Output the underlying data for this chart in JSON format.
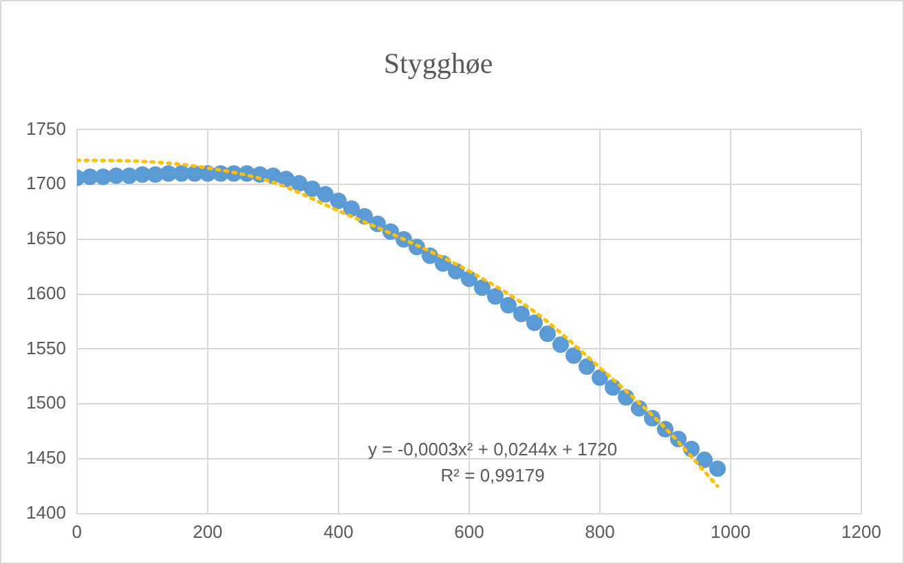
{
  "chart_data": {
    "type": "scatter",
    "title": "Stygghøe",
    "xlim": [
      0,
      1200
    ],
    "xticks": [
      0,
      200,
      400,
      600,
      800,
      1000,
      1200
    ],
    "ylim": [
      1400,
      1750
    ],
    "yticks": [
      1400,
      1450,
      1500,
      1550,
      1600,
      1650,
      1700,
      1750
    ],
    "grid": true,
    "legend": false,
    "marker": "circle",
    "series": [
      {
        "color": "#5b9bd5",
        "x": [
          0,
          20,
          40,
          60,
          80,
          100,
          120,
          140,
          160,
          180,
          200,
          220,
          240,
          260,
          280,
          300,
          320,
          340,
          360,
          380,
          400,
          420,
          440,
          460,
          480,
          500,
          520,
          540,
          560,
          580,
          600,
          620,
          640,
          660,
          680,
          700,
          720,
          740,
          760,
          780,
          800,
          820,
          840,
          860,
          880,
          900,
          920,
          940,
          960,
          980
        ],
        "values": [
          1706,
          1707,
          1707,
          1708,
          1708,
          1709,
          1709,
          1710,
          1710,
          1710,
          1710,
          1710,
          1710,
          1710,
          1709,
          1708,
          1705,
          1701,
          1696,
          1691,
          1685,
          1678,
          1671,
          1664,
          1657,
          1650,
          1643,
          1635,
          1628,
          1621,
          1614,
          1606,
          1598,
          1590,
          1582,
          1574,
          1564,
          1554,
          1544,
          1534,
          1524,
          1515,
          1506,
          1496,
          1487,
          1477,
          1468,
          1459,
          1449,
          1441
        ]
      },
      {
        "type": "line",
        "color": "#ffc000",
        "marker": "none",
        "line_style": "dotted",
        "x": [
          0,
          100,
          200,
          300,
          400,
          500,
          600,
          700,
          800,
          900,
          980
        ],
        "values": [
          1722,
          1721,
          1715,
          1702,
          1676,
          1650,
          1621,
          1584,
          1533,
          1478,
          1425
        ]
      }
    ],
    "annotations": [
      "y = -0,0003x² + 0,0244x + 1720",
      "R² = 0,99179"
    ]
  }
}
